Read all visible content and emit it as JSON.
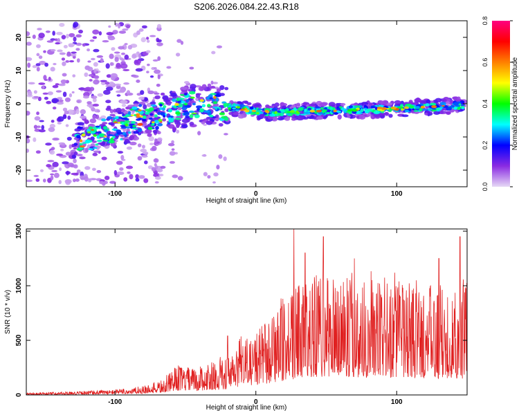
{
  "title": "S206.2026.084.22.43.R18",
  "chart_data": [
    {
      "type": "heatmap",
      "xlabel": "Height of straight line (km)",
      "ylabel": "Frequency (Hz)",
      "xlim": [
        -163,
        150
      ],
      "ylim": [
        -25,
        25
      ],
      "xticks": [
        -100,
        0,
        100
      ],
      "xtick_labels": [
        "-100",
        "0",
        "100"
      ],
      "yticks": [
        -20,
        -10,
        0,
        10,
        20
      ],
      "ytick_labels": [
        "-20",
        "-10",
        "0",
        "10",
        "20"
      ],
      "colorbar": {
        "label": "Normalized spectral amplitude",
        "range": [
          0.0,
          0.8
        ],
        "ticks": [
          0.0,
          0.2,
          0.4,
          0.6,
          0.8
        ],
        "tick_labels": [
          "0.0",
          "0.2",
          "0.4",
          "0.6",
          "0.8"
        ],
        "colors": [
          "#e6d8f5",
          "#8a2be2",
          "#0000ff",
          "#00ffff",
          "#00ff00",
          "#ffff00",
          "#ff8000",
          "#ff0000",
          "#ff0080"
        ]
      },
      "ridge": {
        "description_points_x": [
          -125,
          -110,
          -95,
          -80,
          -65,
          -50,
          -35,
          -20,
          -10,
          0,
          25,
          50,
          75,
          100,
          125,
          145
        ],
        "description_points_y": [
          -11,
          -9,
          -7,
          -4,
          -3,
          -1,
          0,
          -1,
          -1.5,
          -2.5,
          -2.5,
          -2,
          -1.8,
          -1.5,
          -1,
          -0.5
        ]
      }
    },
    {
      "type": "line",
      "xlabel": "Height of straight line (km)",
      "ylabel": "SNR (10 * v/v)",
      "xlim": [
        -163,
        150
      ],
      "ylim": [
        0,
        1520
      ],
      "xticks": [
        -100,
        0,
        100
      ],
      "xtick_labels": [
        "-100",
        "0",
        "100"
      ],
      "yticks": [
        0,
        500,
        1000,
        1500
      ],
      "ytick_labels": [
        "0",
        "500",
        "1000",
        "1500"
      ],
      "line_color": "#e02020",
      "envelope_x": [
        -163,
        -130,
        -100,
        -80,
        -65,
        -55,
        -45,
        -30,
        -20,
        -10,
        0,
        10,
        20,
        30,
        40,
        60,
        80,
        100,
        120,
        150
      ],
      "envelope_y": [
        20,
        30,
        50,
        80,
        150,
        270,
        250,
        300,
        350,
        500,
        600,
        700,
        850,
        1000,
        1100,
        1100,
        1050,
        1050,
        1000,
        1000
      ],
      "peaks_x": [
        -55,
        -20,
        27,
        35,
        48,
        70,
        130,
        145
      ],
      "peaks_y": [
        270,
        540,
        1520,
        1300,
        1450,
        1250,
        1250,
        1450
      ]
    }
  ]
}
